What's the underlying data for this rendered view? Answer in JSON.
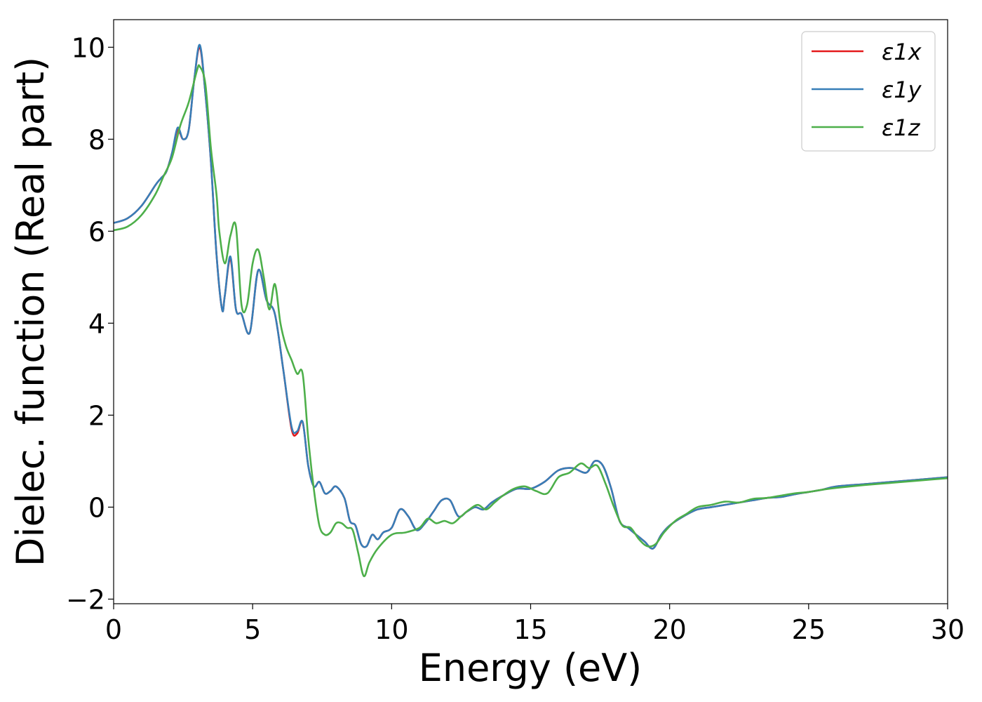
{
  "chart_data": {
    "type": "line",
    "title": "",
    "xlabel": "Energy (eV)",
    "ylabel": "Dielec. function (Real part)",
    "xlim": [
      0,
      30
    ],
    "ylim": [
      -2.1,
      10.6
    ],
    "xticks": [
      0,
      5,
      10,
      15,
      20,
      25,
      30
    ],
    "yticks": [
      -2,
      0,
      2,
      4,
      6,
      8,
      10
    ],
    "xtick_labels": [
      "0",
      "5",
      "10",
      "15",
      "20",
      "25",
      "30"
    ],
    "ytick_labels": [
      "−2",
      "0",
      "2",
      "4",
      "6",
      "8",
      "10"
    ],
    "grid": false,
    "legend_position": "top-right",
    "series": [
      {
        "name": "ε1x",
        "color": "#e41a1c",
        "x": [
          0,
          0.5,
          1,
          1.5,
          1.7,
          1.9,
          2.1,
          2.3,
          2.5,
          2.7,
          2.9,
          3.1,
          3.3,
          3.5,
          3.7,
          3.9,
          4.0,
          4.2,
          4.4,
          4.6,
          4.9,
          5.2,
          5.5,
          5.8,
          6.1,
          6.4,
          6.6,
          6.8,
          7.0,
          7.2,
          7.4,
          7.6,
          7.8,
          8.0,
          8.3,
          8.5,
          8.7,
          8.9,
          9.1,
          9.3,
          9.5,
          9.7,
          10.0,
          10.3,
          10.6,
          10.9,
          11.2,
          11.5,
          11.8,
          12.1,
          12.4,
          12.7,
          13.0,
          13.3,
          13.6,
          14.0,
          14.5,
          15.0,
          15.5,
          16.0,
          16.5,
          17.0,
          17.3,
          17.6,
          17.9,
          18.2,
          18.5,
          18.8,
          19.1,
          19.4,
          19.7,
          20.0,
          20.5,
          21.0,
          21.5,
          22.0,
          22.5,
          23.0,
          23.5,
          24.0,
          24.5,
          25.0,
          25.5,
          26.0,
          27.0,
          28.0,
          29.0,
          30.0
        ],
        "values": [
          6.18,
          6.28,
          6.55,
          7.0,
          7.15,
          7.3,
          7.7,
          8.2,
          8.0,
          8.2,
          9.3,
          10.0,
          9.0,
          7.5,
          5.5,
          4.3,
          4.6,
          5.4,
          4.3,
          4.2,
          3.8,
          5.15,
          4.5,
          4.2,
          3.0,
          1.7,
          1.6,
          1.85,
          0.9,
          0.45,
          0.55,
          0.3,
          0.35,
          0.45,
          0.2,
          -0.3,
          -0.4,
          -0.8,
          -0.85,
          -0.6,
          -0.7,
          -0.55,
          -0.45,
          -0.05,
          -0.2,
          -0.5,
          -0.35,
          -0.1,
          0.15,
          0.15,
          -0.2,
          -0.1,
          0.0,
          -0.05,
          0.1,
          0.25,
          0.4,
          0.4,
          0.55,
          0.8,
          0.85,
          0.75,
          1.0,
          0.9,
          0.4,
          -0.3,
          -0.45,
          -0.6,
          -0.75,
          -0.9,
          -0.6,
          -0.4,
          -0.2,
          -0.05,
          0.0,
          0.05,
          0.1,
          0.15,
          0.2,
          0.22,
          0.28,
          0.33,
          0.38,
          0.45,
          0.5,
          0.55,
          0.6,
          0.65
        ]
      },
      {
        "name": "ε1y",
        "color": "#377eb8",
        "x": [
          0,
          0.5,
          1,
          1.5,
          1.7,
          1.9,
          2.1,
          2.3,
          2.5,
          2.7,
          2.9,
          3.1,
          3.3,
          3.5,
          3.7,
          3.9,
          4.0,
          4.2,
          4.4,
          4.6,
          4.9,
          5.2,
          5.5,
          5.8,
          6.1,
          6.4,
          6.6,
          6.8,
          7.0,
          7.2,
          7.4,
          7.6,
          7.8,
          8.0,
          8.3,
          8.5,
          8.7,
          8.9,
          9.1,
          9.3,
          9.5,
          9.7,
          10.0,
          10.3,
          10.6,
          10.9,
          11.2,
          11.5,
          11.8,
          12.1,
          12.4,
          12.7,
          13.0,
          13.3,
          13.6,
          14.0,
          14.5,
          15.0,
          15.5,
          16.0,
          16.5,
          17.0,
          17.3,
          17.6,
          17.9,
          18.2,
          18.5,
          18.8,
          19.1,
          19.4,
          19.7,
          20.0,
          20.5,
          21.0,
          21.5,
          22.0,
          22.5,
          23.0,
          23.5,
          24.0,
          24.5,
          25.0,
          25.5,
          26.0,
          27.0,
          28.0,
          29.0,
          30.0
        ],
        "values": [
          6.18,
          6.28,
          6.55,
          7.0,
          7.15,
          7.3,
          7.7,
          8.25,
          8.0,
          8.2,
          9.3,
          10.05,
          9.0,
          7.5,
          5.5,
          4.3,
          4.6,
          5.45,
          4.3,
          4.2,
          3.8,
          5.15,
          4.5,
          4.2,
          3.0,
          1.75,
          1.65,
          1.85,
          0.9,
          0.45,
          0.55,
          0.3,
          0.35,
          0.45,
          0.2,
          -0.3,
          -0.4,
          -0.8,
          -0.85,
          -0.6,
          -0.7,
          -0.55,
          -0.45,
          -0.05,
          -0.2,
          -0.5,
          -0.35,
          -0.1,
          0.15,
          0.15,
          -0.2,
          -0.1,
          0.0,
          -0.05,
          0.1,
          0.25,
          0.4,
          0.4,
          0.55,
          0.8,
          0.85,
          0.75,
          1.0,
          0.9,
          0.4,
          -0.3,
          -0.45,
          -0.6,
          -0.75,
          -0.9,
          -0.6,
          -0.4,
          -0.2,
          -0.05,
          0.0,
          0.05,
          0.1,
          0.15,
          0.2,
          0.22,
          0.28,
          0.33,
          0.38,
          0.45,
          0.5,
          0.55,
          0.6,
          0.65
        ]
      },
      {
        "name": "ε1z",
        "color": "#4daf4a",
        "x": [
          0,
          0.5,
          1,
          1.5,
          1.8,
          2.1,
          2.4,
          2.7,
          3.0,
          3.1,
          3.3,
          3.5,
          3.7,
          3.8,
          4.0,
          4.2,
          4.4,
          4.6,
          4.8,
          5.0,
          5.2,
          5.4,
          5.6,
          5.8,
          6.0,
          6.2,
          6.4,
          6.6,
          6.8,
          7.0,
          7.2,
          7.4,
          7.6,
          7.8,
          8.0,
          8.2,
          8.4,
          8.6,
          8.8,
          9.0,
          9.2,
          9.5,
          10.0,
          10.5,
          11.0,
          11.3,
          11.6,
          11.9,
          12.2,
          12.5,
          12.8,
          13.1,
          13.4,
          13.7,
          14.0,
          14.4,
          14.8,
          15.2,
          15.6,
          16.0,
          16.4,
          16.8,
          17.1,
          17.4,
          17.7,
          18.0,
          18.3,
          18.6,
          18.9,
          19.2,
          19.5,
          19.8,
          20.2,
          20.6,
          21.0,
          21.5,
          22.0,
          22.5,
          23.0,
          23.5,
          24.0,
          24.5,
          25.0,
          25.5,
          26.0,
          27.0,
          28.0,
          29.0,
          30.0
        ],
        "values": [
          6.02,
          6.1,
          6.35,
          6.8,
          7.2,
          7.6,
          8.3,
          8.8,
          9.5,
          9.58,
          9.2,
          7.8,
          6.8,
          6.0,
          5.3,
          5.9,
          6.1,
          4.4,
          4.4,
          5.3,
          5.6,
          5.0,
          4.3,
          4.85,
          4.0,
          3.5,
          3.2,
          2.9,
          2.9,
          1.5,
          0.4,
          -0.4,
          -0.6,
          -0.55,
          -0.35,
          -0.35,
          -0.45,
          -0.5,
          -1.0,
          -1.5,
          -1.2,
          -0.9,
          -0.6,
          -0.55,
          -0.45,
          -0.25,
          -0.35,
          -0.3,
          -0.35,
          -0.2,
          -0.05,
          0.05,
          -0.05,
          0.1,
          0.25,
          0.4,
          0.45,
          0.35,
          0.3,
          0.65,
          0.75,
          0.95,
          0.85,
          0.9,
          0.5,
          0.0,
          -0.4,
          -0.45,
          -0.7,
          -0.85,
          -0.8,
          -0.55,
          -0.3,
          -0.15,
          0.0,
          0.05,
          0.12,
          0.1,
          0.18,
          0.2,
          0.25,
          0.3,
          0.33,
          0.38,
          0.42,
          0.48,
          0.53,
          0.58,
          0.63
        ]
      }
    ]
  }
}
